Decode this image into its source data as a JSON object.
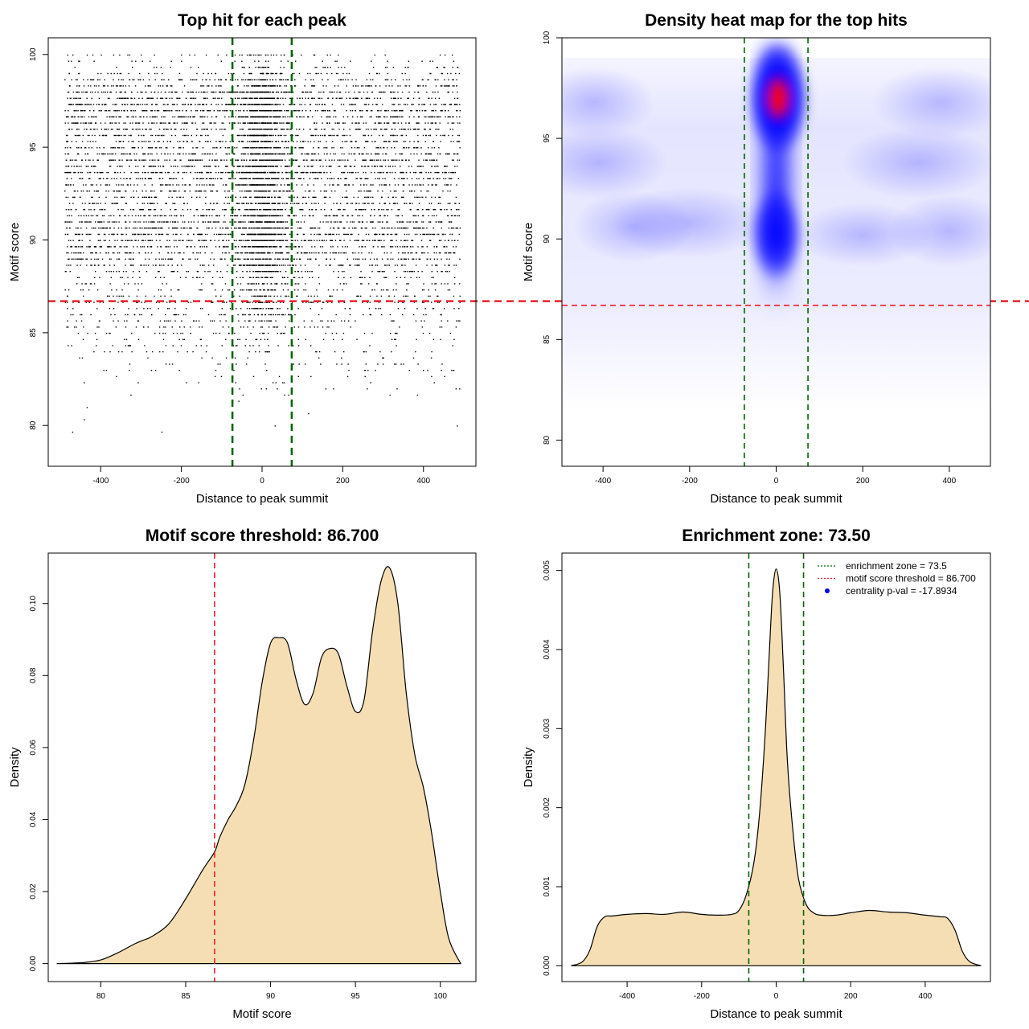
{
  "chart_data": [
    {
      "type": "scatter",
      "title": "Top hit for each peak",
      "xlabel": "Distance to peak summit",
      "ylabel": "Motif score",
      "xlim": [
        -530,
        530
      ],
      "ylim": [
        77.8,
        100.9
      ],
      "xticks": [
        "-400",
        "-200",
        "0",
        "200",
        "400"
      ],
      "xtick_values": [
        -400,
        -200,
        0,
        200,
        400
      ],
      "yticks": [
        "80",
        "85",
        "90",
        "95",
        "100"
      ],
      "ytick_values": [
        80,
        85,
        90,
        95,
        100
      ],
      "vlines": [
        -73.5,
        73.5
      ],
      "hline": 86.7,
      "point_distribution": {
        "x_range": [
          -490,
          490
        ],
        "y_range": [
          78.6,
          100
        ],
        "central_enrichment_x": [
          -73.5,
          73.5
        ],
        "approx_points": 8000
      },
      "grid": false,
      "colors": {
        "points": "#000000",
        "enrichment_lines": "#006400",
        "threshold_line": "#e8202a"
      }
    },
    {
      "type": "heatmap",
      "title": "Density heat map for the top hits",
      "xlabel": "Distance to peak summit",
      "ylabel": "Motif score",
      "xlim": [
        -495,
        495
      ],
      "ylim": [
        78.7,
        100
      ],
      "xticks": [
        "-400",
        "-200",
        "0",
        "200",
        "400"
      ],
      "xtick_values": [
        -400,
        -200,
        0,
        200,
        400
      ],
      "yticks": [
        "80",
        "85",
        "90",
        "95",
        "100"
      ],
      "yticks_values": [
        80,
        85,
        90,
        95,
        100
      ],
      "vlines": [
        -73.5,
        73.5
      ],
      "hline": 86.7,
      "hotspots": [
        {
          "x": 5,
          "y": 97,
          "intensity": "max"
        },
        {
          "x": 0,
          "y": 90.2,
          "intensity": "high"
        },
        {
          "x": -400,
          "y": 93.8,
          "intensity": "low"
        },
        {
          "x": 400,
          "y": 90.4,
          "intensity": "low"
        }
      ],
      "colors": {
        "low": "#ffffff",
        "mid": "#0000ff",
        "high": "#ff0000",
        "enrichment_lines": "#006400",
        "threshold_line": "#e8202a"
      }
    },
    {
      "type": "area",
      "title": "Motif score threshold: 86.700",
      "xlabel": "Motif score",
      "ylabel": "Density",
      "xlim": [
        76.9,
        102.1
      ],
      "ylim": [
        -0.005,
        0.114
      ],
      "xticks": [
        "80",
        "85",
        "90",
        "95",
        "100"
      ],
      "xtick_values": [
        80,
        85,
        90,
        95,
        100
      ],
      "yticks": [
        "0.00",
        "0.02",
        "0.04",
        "0.06",
        "0.08",
        "0.10"
      ],
      "ytick_values": [
        0,
        0.02,
        0.04,
        0.06,
        0.08,
        0.1
      ],
      "x": [
        77.4,
        79,
        80,
        81,
        82,
        82.5,
        83,
        84,
        85,
        86,
        86.7,
        87,
        87.5,
        88,
        88.5,
        89,
        89.5,
        90,
        90.5,
        91,
        91.5,
        92,
        92.5,
        93,
        93.5,
        94,
        94.5,
        95,
        95.5,
        96,
        96.5,
        97,
        97.5,
        98,
        98.5,
        99,
        99.5,
        100,
        100.5,
        101.2
      ],
      "y": [
        0.0,
        0.0003,
        0.001,
        0.003,
        0.0055,
        0.0065,
        0.0075,
        0.011,
        0.018,
        0.026,
        0.031,
        0.035,
        0.04,
        0.044,
        0.05,
        0.062,
        0.078,
        0.089,
        0.0905,
        0.089,
        0.079,
        0.072,
        0.075,
        0.085,
        0.0875,
        0.086,
        0.077,
        0.07,
        0.073,
        0.092,
        0.106,
        0.11,
        0.1,
        0.075,
        0.058,
        0.049,
        0.036,
        0.02,
        0.007,
        0.0
      ],
      "vline": 86.7,
      "colors": {
        "fill": "#f5deb3",
        "line": "#000000",
        "threshold_line": "#e8202a"
      }
    },
    {
      "type": "area",
      "title": "Enrichment zone: 73.50",
      "xlabel": "Distance to peak summit",
      "ylabel": "Density",
      "xlim": [
        -575,
        575
      ],
      "ylim": [
        -0.0002,
        0.00522
      ],
      "xticks": [
        "-400",
        "-200",
        "0",
        "200",
        "400"
      ],
      "xtick_values": [
        -400,
        -200,
        0,
        200,
        400
      ],
      "yticks": [
        "0.000",
        "0.001",
        "0.002",
        "0.003",
        "0.004",
        "0.005"
      ],
      "ytick_values": [
        0,
        0.001,
        0.002,
        0.003,
        0.004,
        0.005
      ],
      "x": [
        -550,
        -520,
        -500,
        -480,
        -460,
        -440,
        -400,
        -350,
        -300,
        -250,
        -200,
        -160,
        -120,
        -100,
        -80,
        -60,
        -45,
        -30,
        -20,
        -10,
        0,
        10,
        20,
        30,
        45,
        60,
        80,
        100,
        120,
        160,
        200,
        250,
        300,
        350,
        400,
        440,
        460,
        480,
        500,
        520,
        550
      ],
      "y": [
        0.0,
        5e-05,
        0.0002,
        0.0005,
        0.00062,
        0.00063,
        0.00065,
        0.00066,
        0.00065,
        0.00068,
        0.00065,
        0.00064,
        0.00065,
        0.0007,
        0.0009,
        0.0013,
        0.0019,
        0.0029,
        0.0038,
        0.0047,
        0.00502,
        0.0047,
        0.0037,
        0.0026,
        0.0017,
        0.0011,
        0.00078,
        0.00067,
        0.00064,
        0.00064,
        0.00067,
        0.0007,
        0.00068,
        0.00067,
        0.00064,
        0.00062,
        0.0006,
        0.00045,
        0.00018,
        5e-05,
        0.0
      ],
      "vlines": [
        -73.5,
        73.5
      ],
      "legend_position": "top-right",
      "legend": [
        {
          "label": "enrichment zone = 73.5",
          "style": "dotted",
          "color": "#006400"
        },
        {
          "label": "motif score threshold = 86.700",
          "style": "dotted",
          "color": "#e8202a"
        },
        {
          "label": "centrality p-val = -17.8934",
          "style": "point",
          "color": "#0000ff"
        }
      ],
      "colors": {
        "fill": "#f5deb3",
        "line": "#000000",
        "enrichment_lines": "#006400"
      }
    }
  ]
}
